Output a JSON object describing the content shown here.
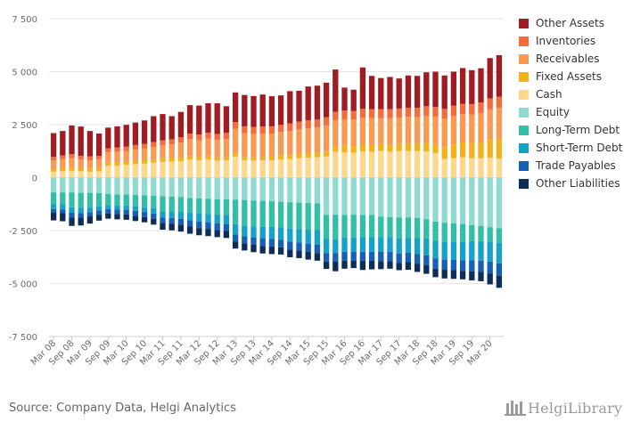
{
  "chart_data": {
    "type": "bar",
    "stacked": true,
    "ylim": [
      -7500,
      7500
    ],
    "y_ticks": [
      -7500,
      -5000,
      -2500,
      0,
      2500,
      5000,
      7500
    ],
    "y_tick_labels": [
      "-7 500",
      "-5 000",
      "-2 500",
      "0",
      "2 500",
      "5 000",
      "7 500"
    ],
    "x_tick_labels": [
      "Mar 08",
      "Sep 08",
      "Mar 09",
      "Sep 09",
      "Mar 10",
      "Sep 10",
      "Mar 11",
      "Sep 11",
      "Mar 12",
      "Sep 12",
      "Mar 13",
      "Sep 13",
      "Mar 14",
      "Sep 14",
      "Mar 15",
      "Sep 15",
      "Mar 16",
      "Sep 16",
      "Mar 17",
      "Sep 17",
      "Mar 18",
      "Sep 18",
      "Mar 19",
      "Sep 19",
      "Mar 20"
    ],
    "categories": [
      "Mar 08",
      "Jun 08",
      "Sep 08",
      "Dec 08",
      "Mar 09",
      "Jun 09",
      "Sep 09",
      "Dec 09",
      "Mar 10",
      "Jun 10",
      "Sep 10",
      "Dec 10",
      "Mar 11",
      "Jun 11",
      "Sep 11",
      "Dec 11",
      "Mar 12",
      "Jun 12",
      "Sep 12",
      "Dec 12",
      "Mar 13",
      "Jun 13",
      "Sep 13",
      "Dec 13",
      "Mar 14",
      "Jun 14",
      "Sep 14",
      "Dec 14",
      "Mar 15",
      "Jun 15",
      "Sep 15",
      "Dec 15",
      "Mar 16",
      "Jun 16",
      "Sep 16",
      "Dec 16",
      "Mar 17",
      "Jun 17",
      "Sep 17",
      "Dec 17",
      "Mar 18",
      "Jun 18",
      "Sep 18",
      "Dec 18",
      "Mar 19",
      "Jun 19",
      "Sep 19",
      "Dec 19",
      "Mar 20",
      "Jun 20"
    ],
    "grid": true,
    "legend_position": "right",
    "series": [
      {
        "name": "Cash",
        "side": "assets",
        "color": "#fdd78a",
        "values": [
          280,
          300,
          320,
          300,
          280,
          300,
          560,
          560,
          600,
          640,
          660,
          700,
          740,
          760,
          780,
          860,
          820,
          860,
          800,
          820,
          1000,
          820,
          800,
          820,
          820,
          860,
          880,
          920,
          940,
          960,
          1000,
          1220,
          1200,
          1180,
          1240,
          1220,
          1260,
          1220,
          1260,
          1260,
          1260,
          1240,
          1160,
          880,
          920,
          960,
          920,
          920,
          940,
          900
        ]
      },
      {
        "name": "Fixed Assets",
        "side": "assets",
        "color": "#f2b21c",
        "values": [
          120,
          140,
          140,
          120,
          130,
          130,
          140,
          150,
          140,
          150,
          160,
          160,
          170,
          150,
          150,
          160,
          160,
          160,
          150,
          150,
          160,
          160,
          150,
          150,
          170,
          200,
          180,
          200,
          200,
          220,
          230,
          240,
          300,
          300,
          320,
          330,
          320,
          330,
          320,
          340,
          340,
          400,
          400,
          560,
          650,
          700,
          700,
          760,
          880,
          940
        ]
      },
      {
        "name": "Receivables",
        "side": "assets",
        "color": "#f99a52",
        "values": [
          420,
          440,
          460,
          430,
          410,
          420,
          500,
          510,
          520,
          540,
          550,
          580,
          620,
          660,
          720,
          800,
          790,
          830,
          830,
          850,
          1150,
          1120,
          1110,
          1100,
          1090,
          1100,
          1140,
          1160,
          1180,
          1180,
          1240,
          1250,
          1250,
          1260,
          1270,
          1260,
          1220,
          1260,
          1260,
          1270,
          1260,
          1280,
          1310,
          1340,
          1350,
          1340,
          1360,
          1370,
          1400,
          1460
        ]
      },
      {
        "name": "Inventories",
        "side": "assets",
        "color": "#f46b3c",
        "values": [
          160,
          170,
          190,
          180,
          180,
          180,
          180,
          200,
          200,
          210,
          220,
          240,
          230,
          240,
          250,
          260,
          260,
          270,
          280,
          290,
          310,
          320,
          330,
          340,
          340,
          330,
          360,
          360,
          380,
          380,
          380,
          400,
          410,
          410,
          420,
          420,
          430,
          420,
          420,
          430,
          440,
          450,
          460,
          460,
          470,
          480,
          490,
          500,
          520,
          520
        ]
      },
      {
        "name": "Other Assets",
        "side": "assets",
        "color": "#a01c23",
        "values": [
          1120,
          1150,
          1350,
          1380,
          1200,
          1050,
          980,
          1000,
          1030,
          1060,
          1110,
          1220,
          1240,
          1090,
          1200,
          1340,
          1370,
          1390,
          1450,
          1260,
          1400,
          1480,
          1460,
          1510,
          1420,
          1390,
          1520,
          1460,
          1600,
          1600,
          1630,
          1990,
          1090,
          1000,
          1950,
          1570,
          1470,
          1520,
          1420,
          1520,
          1500,
          1600,
          1670,
          1580,
          1610,
          1690,
          1600,
          1610,
          1900,
          1960
        ]
      },
      {
        "name": "Equity",
        "side": "liabilities",
        "color": "#8ed9d0",
        "values": [
          -700,
          -700,
          -700,
          -720,
          -720,
          -730,
          -780,
          -790,
          -800,
          -820,
          -840,
          -860,
          -880,
          -900,
          -920,
          -960,
          -980,
          -1000,
          -1020,
          -1030,
          -1040,
          -1060,
          -1080,
          -1100,
          -1120,
          -1140,
          -1160,
          -1180,
          -1200,
          -1220,
          -1760,
          -1750,
          -1760,
          -1750,
          -1760,
          -1760,
          -1840,
          -1860,
          -1880,
          -1880,
          -1900,
          -1960,
          -2080,
          -2130,
          -2160,
          -2190,
          -2240,
          -2280,
          -2340,
          -2390
        ]
      },
      {
        "name": "Long-Term Debt",
        "side": "liabilities",
        "color": "#33bfa7",
        "values": [
          -560,
          -560,
          -700,
          -710,
          -690,
          -620,
          -520,
          -520,
          -520,
          -540,
          -560,
          -580,
          -720,
          -700,
          -700,
          -700,
          -720,
          -720,
          -720,
          -720,
          -1160,
          -1200,
          -1220,
          -1220,
          -1210,
          -1210,
          -1240,
          -1250,
          -1260,
          -1260,
          -1140,
          -1160,
          -1060,
          -1080,
          -1060,
          -1060,
          -960,
          -940,
          -1000,
          -960,
          -940,
          -910,
          -900,
          -900,
          -860,
          -840,
          -760,
          -720,
          -680,
          -700
        ]
      },
      {
        "name": "Short-Term Debt",
        "side": "liabilities",
        "color": "#14a3c7",
        "values": [
          -220,
          -240,
          -260,
          -240,
          -220,
          -210,
          -190,
          -190,
          -200,
          -210,
          -220,
          -250,
          -280,
          -300,
          -330,
          -360,
          -380,
          -400,
          -420,
          -440,
          -480,
          -500,
          -520,
          -540,
          -560,
          -580,
          -620,
          -640,
          -660,
          -680,
          -660,
          -650,
          -680,
          -680,
          -680,
          -680,
          -700,
          -700,
          -700,
          -700,
          -760,
          -800,
          -840,
          -840,
          -860,
          -870,
          -900,
          -920,
          -940,
          -960
        ]
      },
      {
        "name": "Trade Payables",
        "side": "liabilities",
        "color": "#1560b5",
        "values": [
          -180,
          -180,
          -220,
          -210,
          -200,
          -200,
          -210,
          -220,
          -220,
          -230,
          -240,
          -250,
          -260,
          -270,
          -280,
          -290,
          -300,
          -300,
          -310,
          -320,
          -330,
          -340,
          -350,
          -360,
          -360,
          -360,
          -380,
          -380,
          -390,
          -400,
          -400,
          -410,
          -420,
          -420,
          -420,
          -430,
          -440,
          -440,
          -450,
          -450,
          -460,
          -470,
          -480,
          -480,
          -490,
          -500,
          -520,
          -530,
          -560,
          -580
        ]
      },
      {
        "name": "Other Liabilities",
        "side": "liabilities",
        "color": "#0e2e58",
        "values": [
          -360,
          -380,
          -400,
          -380,
          -340,
          -270,
          -240,
          -250,
          -250,
          -250,
          -250,
          -280,
          -320,
          -320,
          -320,
          -340,
          -340,
          -340,
          -340,
          -340,
          -340,
          -340,
          -350,
          -360,
          -360,
          -340,
          -360,
          -350,
          -360,
          -360,
          -350,
          -450,
          -380,
          -340,
          -440,
          -400,
          -380,
          -360,
          -340,
          -360,
          -390,
          -400,
          -400,
          -410,
          -410,
          -400,
          -430,
          -440,
          -520,
          -570
        ]
      }
    ],
    "title": "",
    "xlabel": "",
    "ylabel": ""
  },
  "legend_order": [
    "Other Assets",
    "Inventories",
    "Receivables",
    "Fixed Assets",
    "Cash",
    "Equity",
    "Long-Term Debt",
    "Short-Term Debt",
    "Trade Payables",
    "Other Liabilities"
  ],
  "footer": {
    "source": "Source: Company Data, Helgi Analytics",
    "logo": "HelgiLibrary"
  },
  "colors": {
    "grid": "#e6e6e6",
    "axis": "#cccccc",
    "text": "#666666"
  }
}
